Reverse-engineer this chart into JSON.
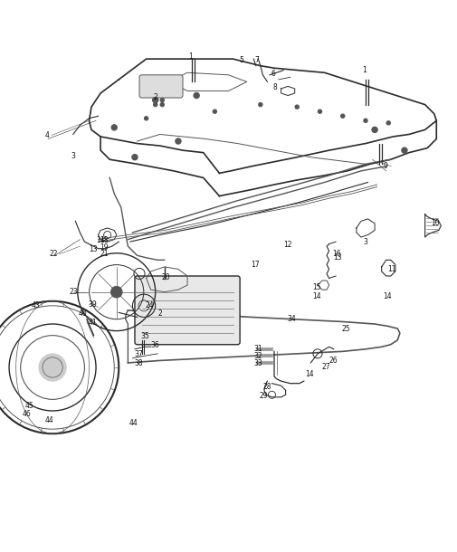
{
  "bg_color": "#ffffff",
  "line_color": "#2a2a2a",
  "light_gray": "#888888",
  "mid_gray": "#555555",
  "dark_gray": "#333333",
  "label_color": "#111111",
  "fig_width": 5.05,
  "fig_height": 6.1,
  "dpi": 100
}
